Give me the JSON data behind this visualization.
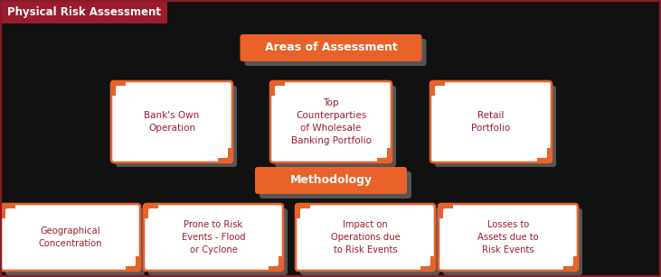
{
  "title": "Physical Risk Assessment",
  "title_bg": "#9b1c2e",
  "bg_color": "#111111",
  "border_color": "#8b1a28",
  "orange": "#e8622a",
  "white": "#ffffff",
  "shadow_color": "#555555",
  "areas_label": "Areas of Assessment",
  "methodology_label": "Methodology",
  "area_boxes": [
    "Bank's Own\nOperation",
    "Top\nCounterparties\nof Wholesale\nBanking Portfolio",
    "Retail\nPortfolio"
  ],
  "method_boxes": [
    "Geographical\nConcentration",
    "Prone to Risk\nEvents - Flood\nor Cyclone",
    "Impact on\nOperations due\nto Risk Events",
    "Losses to\nAssets due to\nRisk Events"
  ],
  "text_color_boxes": "#9b1c2e",
  "label_text_color": "#ffffff",
  "figw": 7.31,
  "figh": 3.07,
  "dpi": 100
}
